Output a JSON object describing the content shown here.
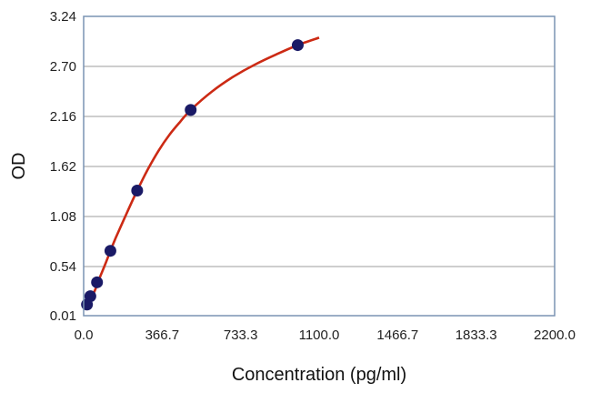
{
  "chart_data": {
    "type": "scatter",
    "title": "",
    "xlabel": "Concentration (pg/ml)",
    "ylabel": "OD",
    "xlim": [
      0,
      2200
    ],
    "ylim": [
      0.01,
      3.24
    ],
    "xticks": [
      "0.0",
      "366.7",
      "733.3",
      "1100.0",
      "1466.7",
      "1833.3",
      "2200.0"
    ],
    "yticks": [
      "0.01",
      "0.54",
      "1.08",
      "1.62",
      "2.16",
      "2.70",
      "3.24"
    ],
    "grid": "horizontal",
    "legend": "none",
    "series": [
      {
        "marker_color": "#1a1a66",
        "points": [
          {
            "x": 15.6,
            "y": 0.13
          },
          {
            "x": 31.25,
            "y": 0.22
          },
          {
            "x": 62.5,
            "y": 0.37
          },
          {
            "x": 125,
            "y": 0.71
          },
          {
            "x": 250,
            "y": 1.36
          },
          {
            "x": 500,
            "y": 2.23
          },
          {
            "x": 1000,
            "y": 2.93
          }
        ]
      },
      {
        "line_color": "#cc2a14",
        "fit": "4PL",
        "curve": [
          {
            "x": 0,
            "y": 0.12
          },
          {
            "x": 25,
            "y": 0.18
          },
          {
            "x": 50,
            "y": 0.27
          },
          {
            "x": 75,
            "y": 0.42
          },
          {
            "x": 100,
            "y": 0.56
          },
          {
            "x": 125,
            "y": 0.71
          },
          {
            "x": 150,
            "y": 0.85
          },
          {
            "x": 200,
            "y": 1.11
          },
          {
            "x": 250,
            "y": 1.36
          },
          {
            "x": 300,
            "y": 1.59
          },
          {
            "x": 350,
            "y": 1.79
          },
          {
            "x": 400,
            "y": 1.96
          },
          {
            "x": 450,
            "y": 2.1
          },
          {
            "x": 500,
            "y": 2.23
          },
          {
            "x": 600,
            "y": 2.43
          },
          {
            "x": 700,
            "y": 2.59
          },
          {
            "x": 800,
            "y": 2.72
          },
          {
            "x": 900,
            "y": 2.83
          },
          {
            "x": 1000,
            "y": 2.93
          },
          {
            "x": 1100,
            "y": 3.01
          }
        ]
      }
    ],
    "colors": {
      "frame": "#7a93b3",
      "grid": "#b0b0b0",
      "curve": "#cc2a14",
      "marker": "#1a1a66"
    }
  }
}
